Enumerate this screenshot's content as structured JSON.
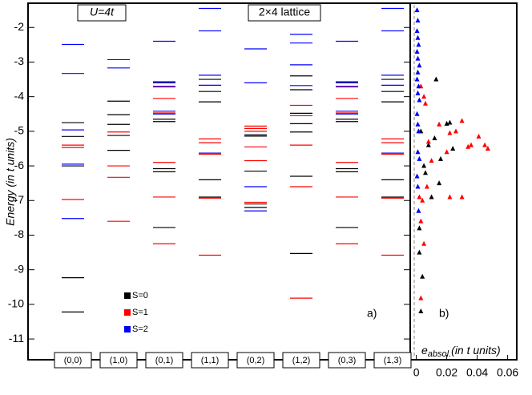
{
  "chart_data": [
    {
      "type": "levels",
      "annotations": {
        "interaction": "U=4t",
        "lattice": "2×4 lattice",
        "panel": "a)"
      },
      "ylabel": "Energy (in t units)",
      "ylim": [
        -11.6,
        -1.3
      ],
      "yticks": [
        -2,
        -3,
        -4,
        -5,
        -6,
        -7,
        -8,
        -9,
        -10,
        -11
      ],
      "categories": [
        "(0,0)",
        "(1,0)",
        "(0,1)",
        "(1,1)",
        "(0,2)",
        "(1,2)",
        "(0,3)",
        "(1,3)"
      ],
      "series": [
        {
          "name": "S=0",
          "color": "#000000",
          "values": [
            [
              -4.75,
              -5.15,
              -6.0,
              -9.23,
              -10.22
            ],
            [
              -4.13,
              -4.52,
              -4.8,
              -5.12,
              -5.55
            ],
            [
              -3.57,
              -4.65,
              -4.72,
              -6.08,
              -6.17,
              -7.78
            ],
            [
              -3.5,
              -3.85,
              -4.15,
              -6.4,
              -6.9
            ],
            [
              -5.1,
              -5.14,
              -6.15,
              -7.1,
              -7.2
            ],
            [
              -3.4,
              -3.8,
              -4.48,
              -4.78,
              -5.02,
              -6.3,
              -8.53
            ],
            [
              -3.57,
              -4.65,
              -4.72,
              -6.08,
              -6.17,
              -7.78
            ],
            [
              -3.5,
              -3.85,
              -4.15,
              -6.4,
              -6.9
            ]
          ]
        },
        {
          "name": "S=1",
          "color": "#ff0000",
          "values": [
            [
              -5.4,
              -5.47,
              -6.97
            ],
            [
              -5.02,
              -6.0,
              -6.33,
              -7.6
            ],
            [
              -3.72,
              -4.05,
              -4.47,
              -5.9,
              -6.9,
              -8.25
            ],
            [
              -5.22,
              -5.33,
              -5.66,
              -6.93,
              -8.58
            ],
            [
              -4.85,
              -4.92,
              -5.0,
              -5.45,
              -5.85,
              -7.05
            ],
            [
              -4.25,
              -4.55,
              -5.4,
              -6.6,
              -9.82
            ],
            [
              -3.72,
              -4.05,
              -4.47,
              -5.9,
              -6.9,
              -8.25
            ],
            [
              -5.22,
              -5.33,
              -5.66,
              -6.93,
              -8.58
            ]
          ]
        },
        {
          "name": "S=2",
          "color": "#0000ff",
          "values": [
            [
              -2.49,
              -3.33,
              -4.96,
              -5.95,
              -7.52
            ],
            [
              -2.93,
              -3.17
            ],
            [
              -2.4,
              -3.6,
              -3.7,
              -4.42,
              -4.5
            ],
            [
              -1.45,
              -2.1,
              -3.38,
              -3.67,
              -5.63
            ],
            [
              -2.62,
              -3.6,
              -6.6,
              -7.3
            ],
            [
              -2.2,
              -2.45,
              -3.08,
              -3.68
            ],
            [
              -2.4,
              -3.6,
              -3.7,
              -4.42,
              -4.5
            ],
            [
              -1.45,
              -2.1,
              -3.38,
              -3.67,
              -5.63
            ]
          ]
        }
      ]
    },
    {
      "type": "scatter",
      "annotations": {
        "panel": "b)"
      },
      "xlabel": {
        "symbol": "e",
        "subscript": "absol.",
        "text": "(in t units)"
      },
      "xlim": [
        -0.004,
        0.066
      ],
      "xticks": [
        0,
        0.02,
        0.04,
        0.06
      ],
      "ylim": [
        -11.6,
        -1.3
      ],
      "series": [
        {
          "color": "#000000",
          "x": [
            0.013,
            0.02,
            0.022,
            0.024,
            0.016,
            0.012,
            0.01,
            0.006,
            0.003,
            0.002,
            0.002,
            0.004,
            0.003,
            0.008,
            0.005,
            0.015
          ],
          "y": [
            -3.5,
            -4.78,
            -4.75,
            -5.5,
            -5.8,
            -5.2,
            -6.9,
            -6.2,
            -5.0,
            -8.5,
            -7.8,
            -9.2,
            -10.2,
            -5.4,
            -6.0,
            -6.5
          ]
        },
        {
          "color": "#ff0000",
          "x": [
            0.03,
            0.041,
            0.045,
            0.047,
            0.036,
            0.034,
            0.026,
            0.022,
            0.02,
            0.015,
            0.008,
            0.006,
            0.005,
            0.003,
            0.002,
            0.004,
            0.03,
            0.022,
            0.005,
            0.003,
            0.007,
            0.01,
            0.003
          ],
          "y": [
            -4.7,
            -5.15,
            -5.4,
            -5.5,
            -5.4,
            -5.45,
            -5.0,
            -5.05,
            -5.6,
            -4.8,
            -5.3,
            -4.2,
            -4.0,
            -3.7,
            -6.9,
            -7.0,
            -6.9,
            -6.9,
            -8.25,
            -9.82,
            -6.6,
            -5.85,
            -7.6
          ]
        },
        {
          "color": "#0000ff",
          "x": [
            0.0005,
            0.001,
            0.0005,
            0.001,
            0.0015,
            0.0005,
            0.001,
            0.002,
            0.001,
            0.0005,
            0.0015,
            0.001,
            0.002,
            0.0005,
            0.001,
            0.0015,
            0.001,
            0.002,
            0.0005,
            0.001,
            0.0015
          ],
          "y": [
            -1.5,
            -1.8,
            -2.1,
            -2.3,
            -2.5,
            -2.7,
            -2.9,
            -3.1,
            -3.3,
            -3.5,
            -3.7,
            -3.9,
            -4.1,
            -4.5,
            -4.8,
            -5.0,
            -5.6,
            -5.8,
            -6.3,
            -6.6,
            -7.3
          ]
        }
      ]
    }
  ]
}
